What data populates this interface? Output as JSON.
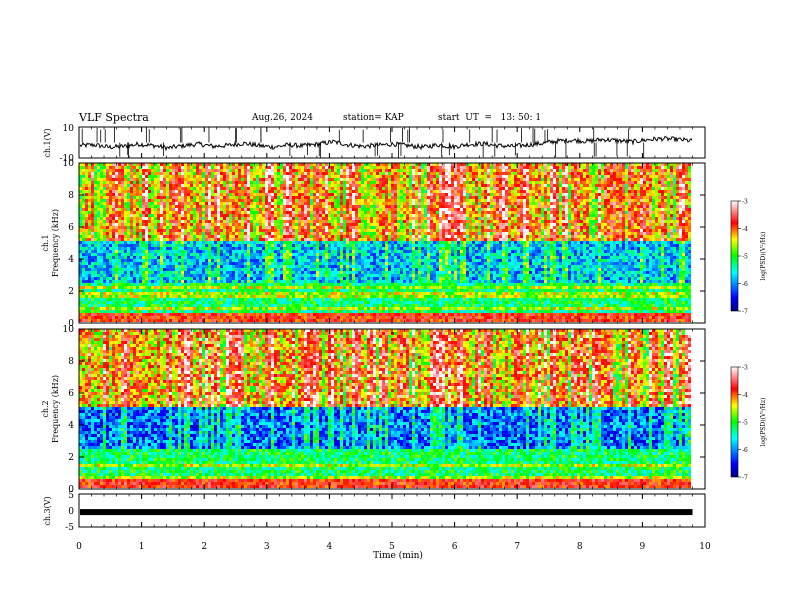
{
  "header": {
    "title": "VLF Spectra",
    "date": "Aug.26, 2024",
    "station": "station= KAP",
    "start": "start  UT  =   13: 50: 1"
  },
  "chart_data": [
    {
      "type": "line",
      "ylabel": "ch.1(V)",
      "ylim": [
        -10,
        10
      ],
      "y_ticks": [
        "10",
        "-10"
      ],
      "description": "waveform amplitude trace, mostly between -4 and +4 V with frequent spikes",
      "baseline_values": [
        -2,
        -1.5,
        -3,
        -2.5,
        -1,
        -2,
        -3.5,
        -2,
        -1,
        -2.5,
        -1.8,
        -0.5,
        -2,
        -3,
        -1.5,
        -2.2,
        -1,
        0.5,
        -1.5,
        -2.5,
        -1.8,
        -1,
        -2,
        -3,
        -1.5,
        -2.8,
        -1.2,
        -0.8,
        -2,
        -2.5,
        -1.5,
        -0.5,
        1,
        1.5,
        0.8,
        2,
        1.2,
        0.5,
        1.8,
        2.5,
        2,
        1
      ]
    },
    {
      "type": "heatmap",
      "ylabel": "ch.1\nFrequency (kHz)",
      "ylim": [
        0,
        10
      ],
      "y_ticks": [
        "0",
        "2",
        "4",
        "6",
        "8",
        "10"
      ],
      "colorbar": {
        "label": "log(PSD)(V²/Hz)",
        "ticks": [
          "-3",
          "-4",
          "-5",
          "-6",
          "-7"
        ],
        "range": [
          -7,
          -3
        ]
      }
    },
    {
      "type": "heatmap",
      "ylabel": "ch.2\nFrequency (kHz)",
      "ylim": [
        0,
        10
      ],
      "y_ticks": [
        "0",
        "2",
        "4",
        "6",
        "8",
        "10"
      ],
      "colorbar": {
        "label": "log(PSD)(V²/Hz)",
        "ticks": [
          "-3",
          "-4",
          "-5",
          "-6",
          "-7"
        ],
        "range": [
          -7,
          -3
        ]
      }
    },
    {
      "type": "line",
      "ylabel": "ch.3(V)",
      "ylim": [
        -5,
        5
      ],
      "y_ticks": [
        "5",
        "0",
        "-5"
      ],
      "description": "thick flat band near -0.5 V",
      "level": -0.5
    }
  ],
  "x_axis": {
    "label": "Time (min)",
    "range": [
      0,
      10
    ],
    "ticks": [
      "0",
      "1",
      "2",
      "3",
      "4",
      "5",
      "6",
      "7",
      "8",
      "9",
      "10"
    ]
  },
  "colors": {
    "colormap": [
      "#000080",
      "#0000ff",
      "#00ffff",
      "#00ff00",
      "#ffff00",
      "#ff0000",
      "#ffffff"
    ]
  }
}
